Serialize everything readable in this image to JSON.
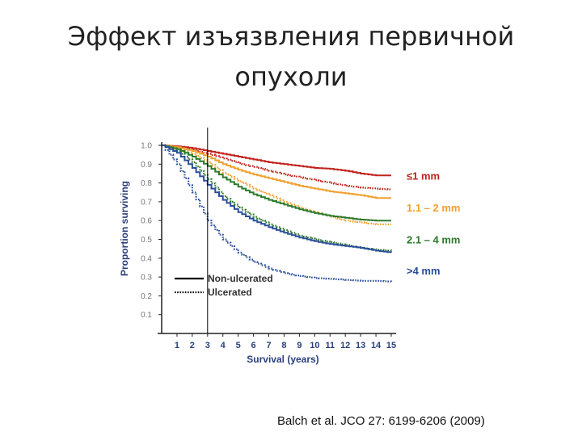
{
  "slide": {
    "title_line1": "Эффект изъязвления первичной",
    "title_line2": "опухоли",
    "citation": "Balch et al. JCO 27: 6199-6206 (2009)"
  },
  "chart_data": {
    "type": "line",
    "title": "",
    "xlabel": "Survival (years)",
    "ylabel": "Proportion surviving",
    "xlim": [
      0,
      15
    ],
    "ylim": [
      0,
      1.0
    ],
    "x_ticks": [
      "1",
      "2",
      "3",
      "4",
      "5",
      "6",
      "7",
      "8",
      "9",
      "10",
      "11",
      "12",
      "13",
      "14",
      "15"
    ],
    "y_ticks": [
      "1.0",
      "0.9",
      "0.8",
      "0.7",
      "0.6",
      "0.5",
      "0.4",
      "0.3",
      "0.2",
      "0.1"
    ],
    "vline_x": 3,
    "grid": false,
    "legend": {
      "placement": "lower-left",
      "entries": [
        {
          "label": "Non-ulcerated",
          "style": "solid"
        },
        {
          "label": "Ulcerated",
          "style": "dotted"
        }
      ]
    },
    "group_labels": [
      {
        "text": "≤1 mm",
        "color": "#c0221a",
        "y": 0.835
      },
      {
        "text": "1.1 – 2 mm",
        "color": "#f0a030",
        "y": 0.665
      },
      {
        "text": "2.1 – 4 mm",
        "color": "#2b7a2b",
        "y": 0.495
      },
      {
        "text": ">4 mm",
        "color": "#2a4f9a",
        "y": 0.33
      }
    ],
    "series": [
      {
        "color": "#c0221a",
        "style": "solid",
        "x": [
          0,
          1,
          2,
          3,
          4,
          5,
          6,
          7,
          8,
          9,
          10,
          11,
          12,
          13,
          14,
          15
        ],
        "y": [
          1.0,
          0.995,
          0.985,
          0.97,
          0.955,
          0.94,
          0.925,
          0.91,
          0.9,
          0.89,
          0.88,
          0.875,
          0.865,
          0.85,
          0.84,
          0.84
        ]
      },
      {
        "color": "#c0221a",
        "style": "dotted",
        "x": [
          0,
          1,
          2,
          3,
          4,
          5,
          6,
          7,
          8,
          9,
          10,
          11,
          12,
          13,
          14,
          15
        ],
        "y": [
          1.0,
          0.99,
          0.975,
          0.955,
          0.93,
          0.905,
          0.885,
          0.865,
          0.845,
          0.83,
          0.815,
          0.8,
          0.785,
          0.775,
          0.77,
          0.765
        ]
      },
      {
        "color": "#f0a030",
        "style": "solid",
        "x": [
          0,
          1,
          2,
          3,
          4,
          5,
          6,
          7,
          8,
          9,
          10,
          11,
          12,
          13,
          14,
          15
        ],
        "y": [
          1.0,
          0.99,
          0.97,
          0.94,
          0.9,
          0.87,
          0.845,
          0.825,
          0.805,
          0.785,
          0.77,
          0.755,
          0.745,
          0.735,
          0.72,
          0.72
        ]
      },
      {
        "color": "#f0a030",
        "style": "dotted",
        "x": [
          0,
          1,
          2,
          3,
          4,
          5,
          6,
          7,
          8,
          9,
          10,
          11,
          12,
          13,
          14,
          15
        ],
        "y": [
          1.0,
          0.985,
          0.955,
          0.91,
          0.855,
          0.81,
          0.77,
          0.735,
          0.7,
          0.67,
          0.645,
          0.62,
          0.6,
          0.59,
          0.58,
          0.58
        ]
      },
      {
        "color": "#2b7a2b",
        "style": "solid",
        "x": [
          0,
          1,
          2,
          3,
          4,
          5,
          6,
          7,
          8,
          9,
          10,
          11,
          12,
          13,
          14,
          15
        ],
        "y": [
          1.0,
          0.98,
          0.94,
          0.89,
          0.83,
          0.78,
          0.74,
          0.71,
          0.685,
          0.66,
          0.64,
          0.625,
          0.615,
          0.605,
          0.6,
          0.6
        ]
      },
      {
        "color": "#2b7a2b",
        "style": "dotted",
        "x": [
          0,
          1,
          2,
          3,
          4,
          5,
          6,
          7,
          8,
          9,
          10,
          11,
          12,
          13,
          14,
          15
        ],
        "y": [
          1.0,
          0.97,
          0.91,
          0.82,
          0.73,
          0.67,
          0.62,
          0.58,
          0.55,
          0.52,
          0.5,
          0.485,
          0.47,
          0.455,
          0.445,
          0.44
        ]
      },
      {
        "color": "#2a4f9a",
        "style": "solid",
        "x": [
          0,
          1,
          2,
          3,
          4,
          5,
          6,
          7,
          8,
          9,
          10,
          11,
          12,
          13,
          14,
          15
        ],
        "y": [
          1.0,
          0.96,
          0.88,
          0.79,
          0.71,
          0.645,
          0.6,
          0.565,
          0.535,
          0.51,
          0.49,
          0.475,
          0.465,
          0.455,
          0.44,
          0.43
        ]
      },
      {
        "color": "#2a4f9a",
        "style": "dotted",
        "x": [
          0,
          1,
          2,
          3,
          4,
          5,
          6,
          7,
          8,
          9,
          10,
          11,
          12,
          13,
          14,
          15
        ],
        "y": [
          1.0,
          0.9,
          0.75,
          0.6,
          0.5,
          0.43,
          0.38,
          0.345,
          0.32,
          0.305,
          0.295,
          0.29,
          0.285,
          0.28,
          0.28,
          0.275
        ]
      }
    ]
  }
}
